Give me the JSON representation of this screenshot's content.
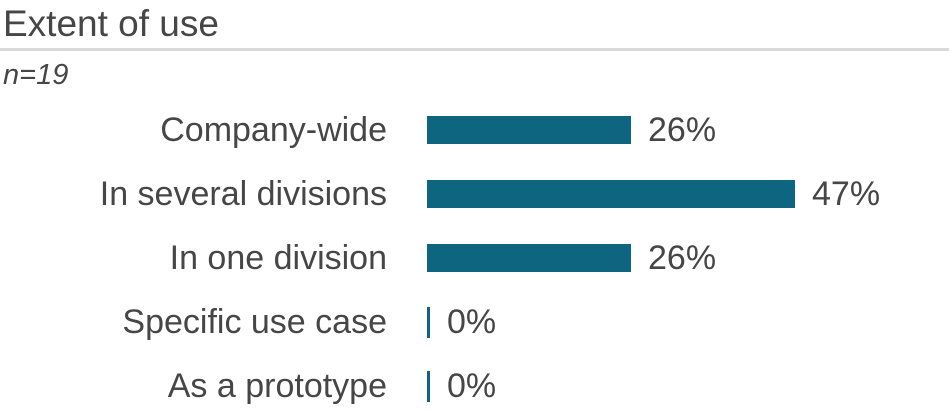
{
  "header": {
    "title": "Extent of use"
  },
  "subtitle": "n=19",
  "chart_data": {
    "type": "bar",
    "orientation": "horizontal",
    "title": "Extent of use",
    "subtitle": "n=19",
    "sample_size": 19,
    "categories": [
      "Company-wide",
      "In several divisions",
      "In one division",
      "Specific use case",
      "As a prototype"
    ],
    "values": [
      26,
      47,
      26,
      0,
      0
    ],
    "value_labels": [
      "26%",
      "47%",
      "26%",
      "0%",
      "0%"
    ],
    "xlim": [
      0,
      100
    ],
    "grid": false,
    "legend": "none",
    "data_labels_position": "outside-end",
    "colors": {
      "bar": "#0d657f",
      "text": "#464646",
      "divider": "#d9d9d9",
      "background": "#ffffff"
    }
  }
}
